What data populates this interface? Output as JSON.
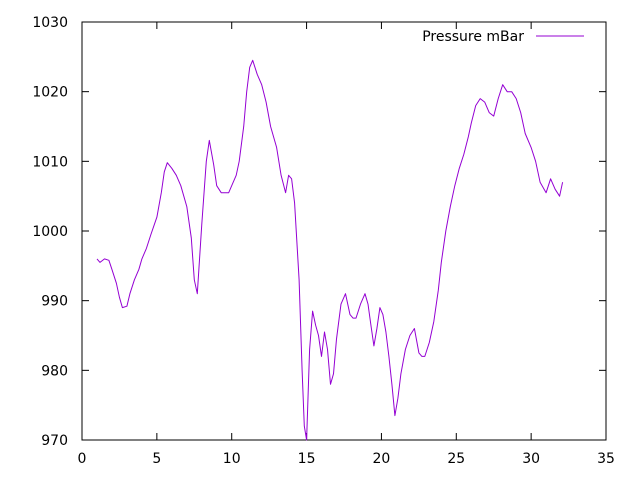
{
  "chart_data": {
    "type": "line",
    "title": "",
    "xlabel": "",
    "ylabel": "",
    "xlim": [
      0,
      35
    ],
    "ylim": [
      970,
      1030
    ],
    "xticks": [
      0,
      5,
      10,
      15,
      20,
      25,
      30,
      35
    ],
    "yticks": [
      970,
      980,
      990,
      1000,
      1010,
      1020,
      1030
    ],
    "xtick_labels": [
      "0",
      "5",
      "10",
      "15",
      "20",
      "25",
      "30",
      "35"
    ],
    "ytick_labels": [
      "970",
      "980",
      "990",
      "1000",
      "1010",
      "1020",
      "1030"
    ],
    "grid": false,
    "legend_position": "top-right",
    "series": [
      {
        "name": "Pressure mBar",
        "color": "#9400d3",
        "x": [
          1.0,
          1.2,
          1.5,
          1.8,
          2.0,
          2.3,
          2.5,
          2.7,
          3.0,
          3.2,
          3.5,
          3.8,
          4.0,
          4.3,
          4.6,
          5.0,
          5.3,
          5.5,
          5.7,
          6.0,
          6.3,
          6.6,
          7.0,
          7.3,
          7.5,
          7.7,
          8.0,
          8.3,
          8.5,
          8.8,
          9.0,
          9.3,
          9.6,
          9.8,
          10.0,
          10.3,
          10.5,
          10.8,
          11.0,
          11.2,
          11.4,
          11.7,
          12.0,
          12.3,
          12.6,
          13.0,
          13.3,
          13.6,
          13.8,
          14.0,
          14.2,
          14.5,
          14.7,
          14.85,
          15.0,
          15.2,
          15.4,
          15.6,
          15.8,
          16.0,
          16.2,
          16.4,
          16.6,
          16.8,
          17.0,
          17.3,
          17.6,
          17.9,
          18.1,
          18.3,
          18.6,
          18.9,
          19.1,
          19.3,
          19.5,
          19.7,
          19.9,
          20.1,
          20.3,
          20.5,
          20.7,
          20.9,
          21.1,
          21.3,
          21.6,
          21.9,
          22.2,
          22.5,
          22.7,
          22.9,
          23.2,
          23.5,
          23.8,
          24.0,
          24.3,
          24.6,
          24.9,
          25.2,
          25.5,
          25.8,
          26.0,
          26.3,
          26.6,
          26.9,
          27.2,
          27.5,
          27.8,
          28.1,
          28.4,
          28.7,
          29.0,
          29.3,
          29.6,
          30.0,
          30.3,
          30.6,
          31.0,
          31.3,
          31.6,
          31.9,
          32.1
        ],
        "y": [
          996.0,
          995.5,
          996.0,
          995.8,
          994.5,
          992.5,
          990.5,
          989.0,
          989.2,
          991.0,
          993.0,
          994.5,
          996.0,
          997.5,
          999.5,
          1002.0,
          1005.5,
          1008.5,
          1009.8,
          1009.0,
          1008.0,
          1006.5,
          1003.5,
          999.0,
          993.0,
          991.0,
          1001.0,
          1010.0,
          1013.0,
          1009.5,
          1006.5,
          1005.5,
          1005.5,
          1005.5,
          1006.5,
          1008.0,
          1010.0,
          1015.0,
          1020.0,
          1023.5,
          1024.5,
          1022.5,
          1021.0,
          1018.5,
          1015.0,
          1012.0,
          1008.0,
          1005.5,
          1008.0,
          1007.5,
          1004.0,
          993.0,
          980.0,
          972.0,
          970.0,
          983.0,
          988.5,
          986.5,
          985.0,
          982.0,
          985.5,
          983.0,
          978.0,
          979.5,
          984.5,
          989.5,
          991.0,
          988.0,
          987.5,
          987.5,
          989.5,
          991.0,
          989.5,
          986.5,
          983.5,
          986.0,
          989.0,
          988.0,
          985.5,
          982.0,
          978.0,
          973.5,
          976.0,
          979.5,
          983.0,
          985.0,
          986.0,
          982.5,
          982.0,
          982.0,
          984.0,
          987.0,
          991.5,
          995.5,
          1000.0,
          1003.5,
          1006.5,
          1009.0,
          1011.0,
          1013.5,
          1015.5,
          1018.0,
          1019.0,
          1018.5,
          1017.0,
          1016.5,
          1019.0,
          1021.0,
          1020.0,
          1020.0,
          1019.0,
          1017.0,
          1014.0,
          1012.0,
          1010.0,
          1007.0,
          1005.5,
          1007.5,
          1006.0,
          1005.0,
          1007.0
        ]
      }
    ]
  }
}
